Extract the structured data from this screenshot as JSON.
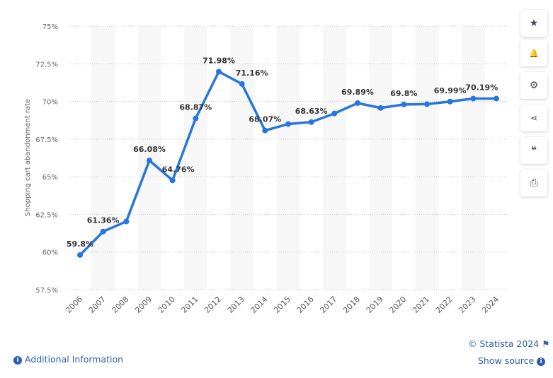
{
  "chart_data": {
    "type": "line",
    "ylabel": "Shopping cart abandonment rate",
    "xlabel": "",
    "ylim": [
      57.5,
      75
    ],
    "yticks": [
      "57.5%",
      "60%",
      "62.5%",
      "65%",
      "67.5%",
      "70%",
      "72.5%",
      "75%"
    ],
    "ytick_values": [
      57.5,
      60,
      62.5,
      65,
      67.5,
      70,
      72.5,
      75
    ],
    "categories": [
      "2006",
      "2007",
      "2008",
      "2009",
      "2010",
      "2011",
      "2012",
      "2013",
      "2014",
      "2015",
      "2016",
      "2017",
      "2018",
      "2019",
      "2020",
      "2021",
      "2022",
      "2023",
      "2024"
    ],
    "values": [
      59.8,
      61.36,
      62.03,
      66.08,
      64.76,
      68.87,
      71.98,
      71.16,
      68.07,
      68.5,
      68.63,
      69.2,
      69.89,
      69.57,
      69.8,
      69.82,
      69.99,
      70.19,
      70.19
    ],
    "data_labels": [
      "59.8%",
      "61.36%",
      "",
      "66.08%",
      "64.76%",
      "68.87%",
      "71.98%",
      "71.16%",
      "68.07%",
      "",
      "68.63%",
      "",
      "69.89%",
      "",
      "69.8%",
      "",
      "69.99%",
      "70.19%",
      ""
    ],
    "line_color": "#2876dd",
    "grid": true
  },
  "sidebar": {
    "icons": [
      "star-icon",
      "bell-icon",
      "gear-icon",
      "share-icon",
      "quote-icon",
      "print-icon"
    ],
    "glyphs": [
      "★",
      "🔔",
      "⚙",
      "⟨",
      "❝",
      "⎙"
    ]
  },
  "footer": {
    "copyright": "© Statista 2024",
    "additional_info": "Additional Information",
    "show_source": "Show source"
  }
}
